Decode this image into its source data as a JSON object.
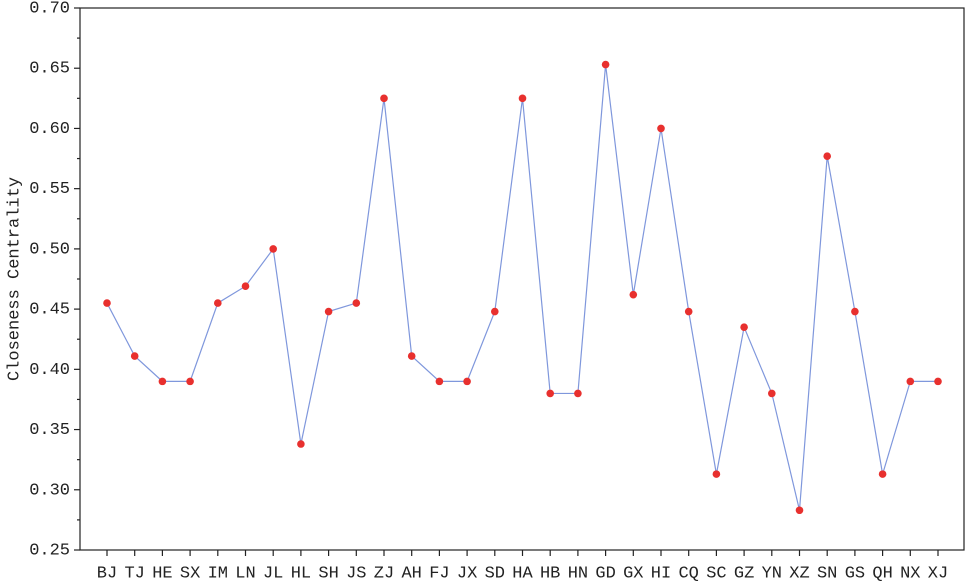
{
  "chart_data": {
    "type": "line",
    "y_label": "Closeness Centrality",
    "categories": [
      "BJ",
      "TJ",
      "HE",
      "SX",
      "IM",
      "LN",
      "JL",
      "HL",
      "SH",
      "JS",
      "ZJ",
      "AH",
      "FJ",
      "JX",
      "SD",
      "HA",
      "HB",
      "HN",
      "GD",
      "GX",
      "HI",
      "CQ",
      "SC",
      "GZ",
      "YN",
      "XZ",
      "SN",
      "GS",
      "QH",
      "NX",
      "XJ"
    ],
    "values": [
      0.455,
      0.411,
      0.39,
      0.39,
      0.455,
      0.469,
      0.5,
      0.338,
      0.448,
      0.455,
      0.625,
      0.411,
      0.39,
      0.39,
      0.448,
      0.625,
      0.38,
      0.38,
      0.653,
      0.462,
      0.6,
      0.448,
      0.313,
      0.435,
      0.38,
      0.283,
      0.577,
      0.448,
      0.313,
      0.39,
      0.39
    ],
    "color": "#7f97dc",
    "marker_color": "#e8302e",
    "ylim": [
      0.25,
      0.7
    ],
    "yticks": [
      {
        "value": 0.25,
        "label": "0.25"
      },
      {
        "value": 0.3,
        "label": "0.30"
      },
      {
        "value": 0.35,
        "label": "0.35"
      },
      {
        "value": 0.4,
        "label": "0.40"
      },
      {
        "value": 0.45,
        "label": "0.45"
      },
      {
        "value": 0.5,
        "label": "0.50"
      },
      {
        "value": 0.55,
        "label": "0.55"
      },
      {
        "value": 0.6,
        "label": "0.60"
      },
      {
        "value": 0.65,
        "label": "0.65"
      },
      {
        "value": 0.7,
        "label": "0.70"
      }
    ],
    "grid": false
  }
}
